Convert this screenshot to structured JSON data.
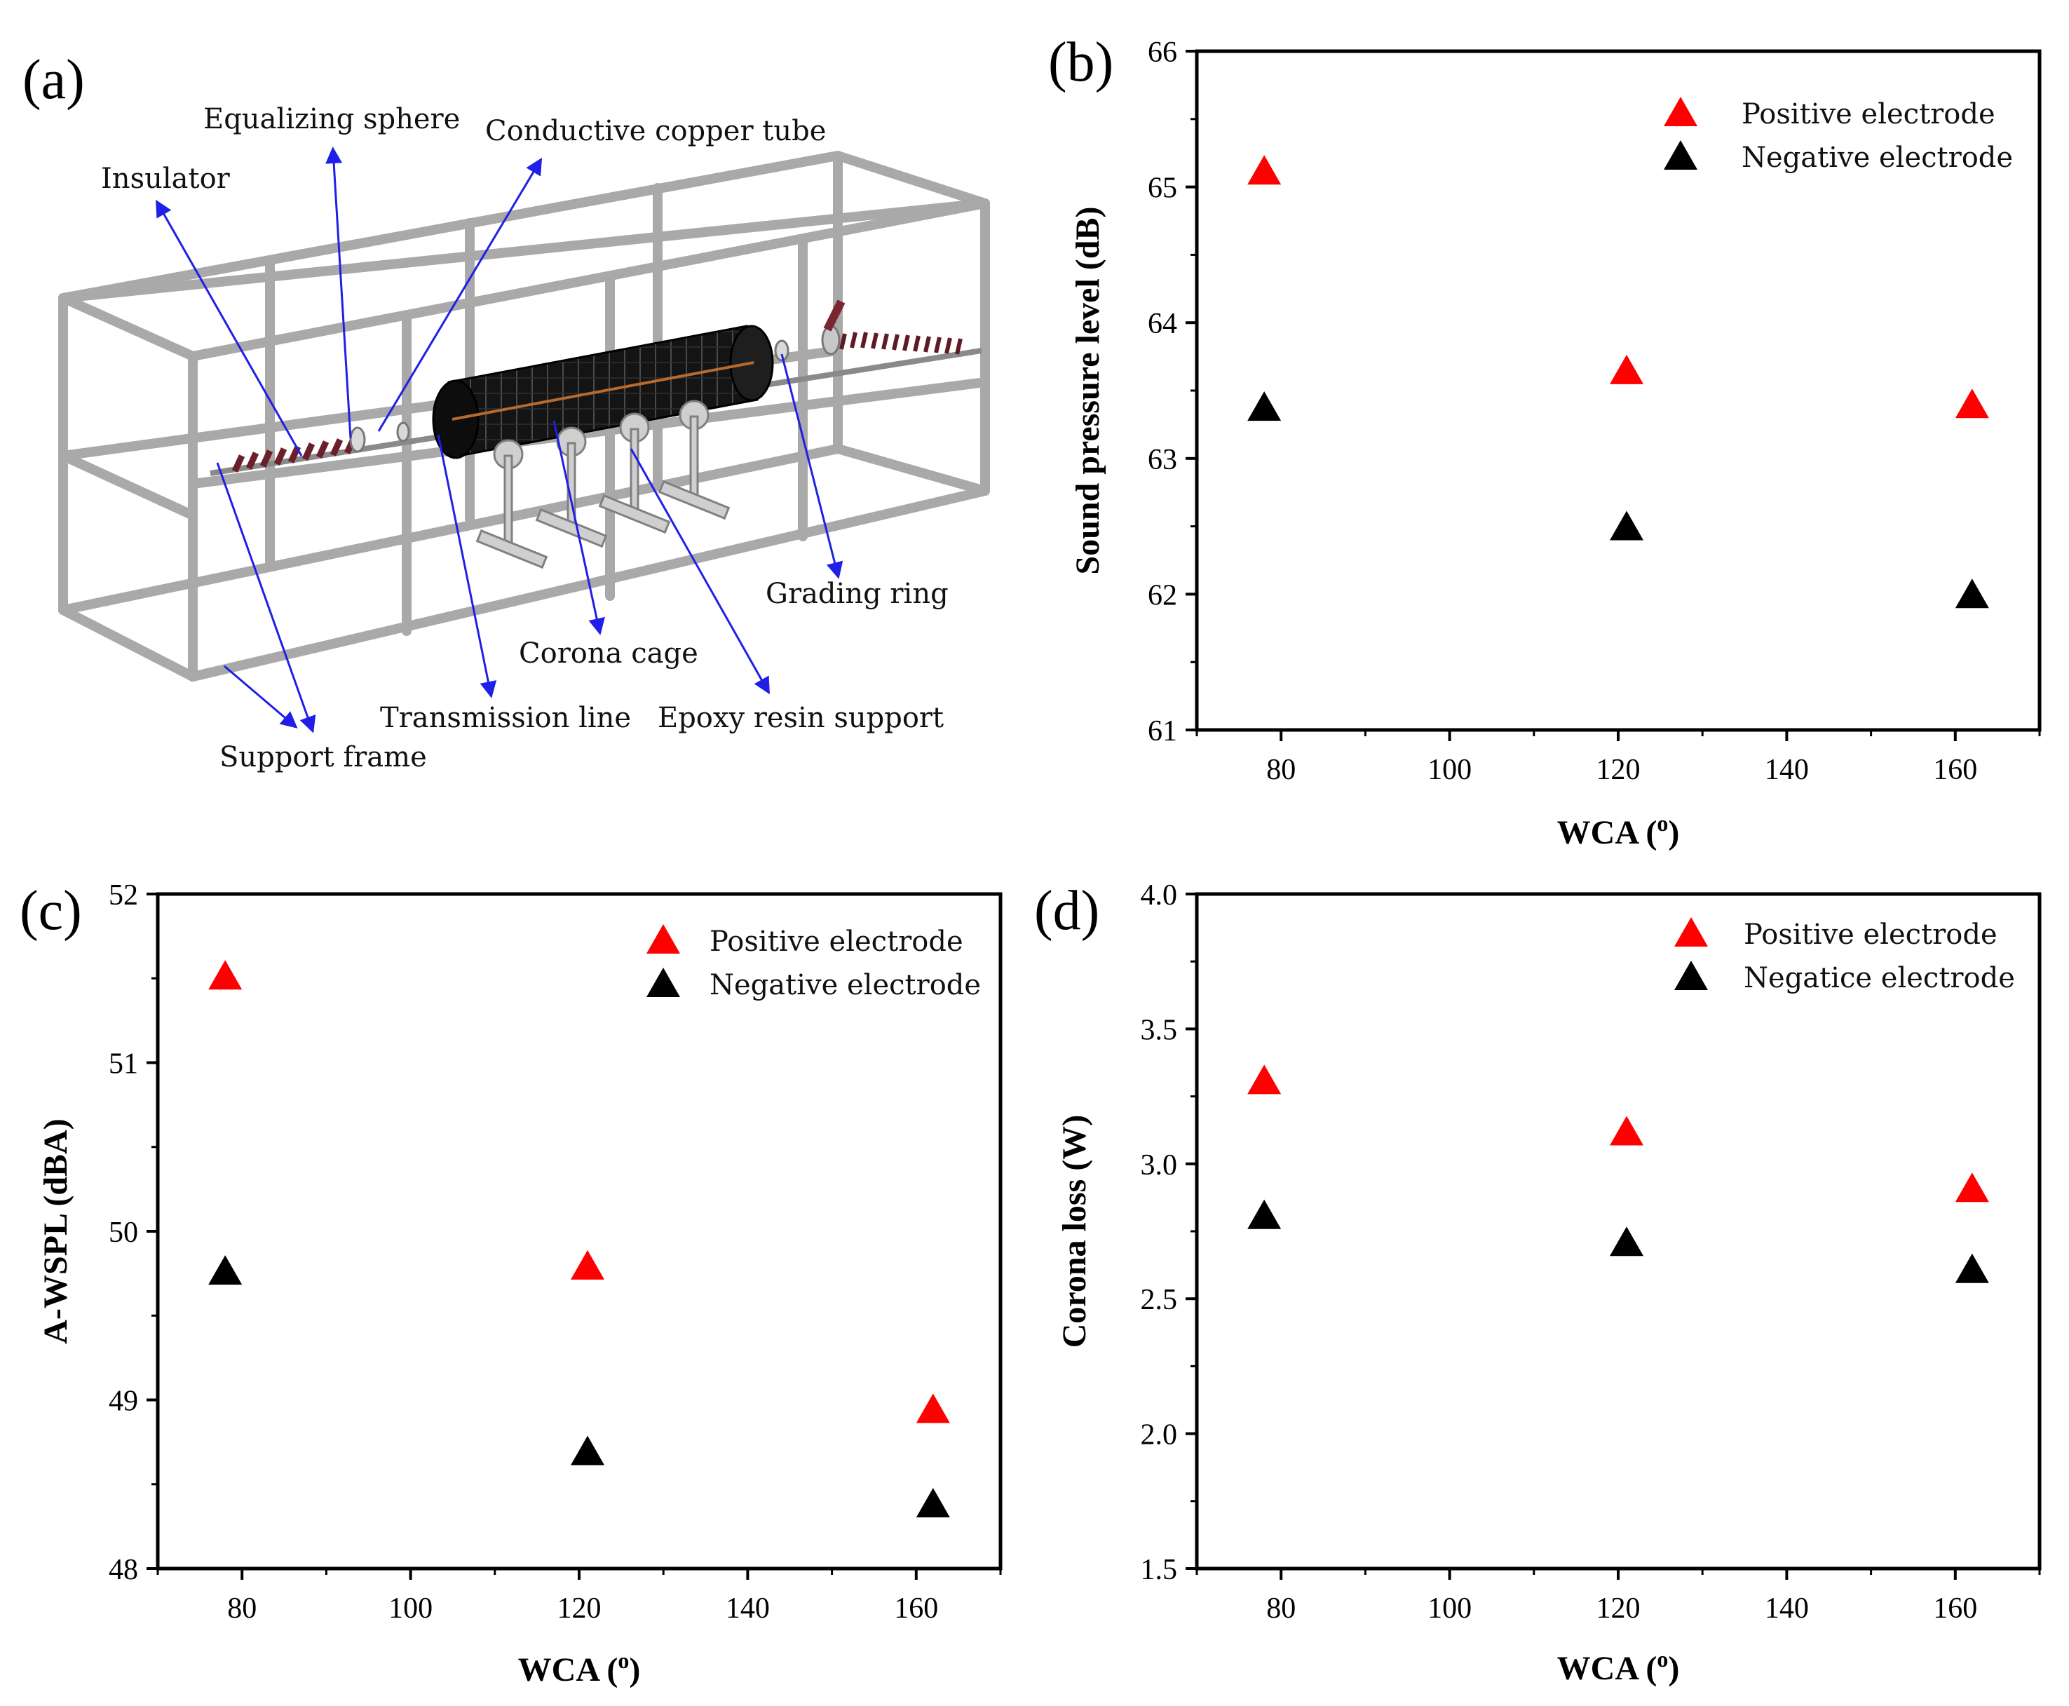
{
  "panel_a": {
    "letter": "(a)",
    "labels": {
      "equalizing_sphere": "Equalizing sphere",
      "conductive_copper_tube": "Conductive copper tube",
      "insulator": "Insulator",
      "grading_ring": "Grading ring",
      "corona_cage": "Corona cage",
      "transmission_line": "Transmission line",
      "epoxy_resin_support": "Epoxy resin support",
      "support_frame": "Support frame"
    },
    "colors": {
      "arrow": "#1f1fe8",
      "frame": "#b8b8b8",
      "cage": "#1a1a1a",
      "insulator": "#7a2630"
    }
  },
  "chart_data": [
    {
      "id": "b",
      "panel_letter": "(b)",
      "type": "scatter",
      "xlabel": "WCA (o)",
      "xlabel_main": "WCA (",
      "xlabel_sup": "o",
      "xlabel_close": ")",
      "ylabel": "Sound pressure level (dB)",
      "xlim": [
        70,
        170
      ],
      "ylim": [
        61,
        66
      ],
      "xticks": [
        "80",
        "100",
        "120",
        "140",
        "160"
      ],
      "yticks": [
        "61",
        "62",
        "63",
        "64",
        "65",
        "66"
      ],
      "series": [
        {
          "name": "Positive electrode",
          "color": "#ff0000",
          "x": [
            78,
            121,
            162
          ],
          "y": [
            65.1,
            63.63,
            63.38
          ]
        },
        {
          "name": "Negative electrode",
          "color": "#000000",
          "x": [
            78,
            121,
            162
          ],
          "y": [
            63.36,
            62.48,
            61.98
          ]
        }
      ],
      "legend": "top-right"
    },
    {
      "id": "c",
      "panel_letter": "(c)",
      "type": "scatter",
      "xlabel": "WCA (o)",
      "xlabel_main": "WCA (",
      "xlabel_sup": "o",
      "xlabel_close": ")",
      "ylabel": "A-WSPL (dBA)",
      "xlim": [
        70,
        170
      ],
      "ylim": [
        48,
        52
      ],
      "xticks": [
        "80",
        "100",
        "120",
        "140",
        "160"
      ],
      "yticks": [
        "48",
        "49",
        "50",
        "51",
        "52"
      ],
      "series": [
        {
          "name": "Positive electrode",
          "color": "#ff0000",
          "x": [
            78,
            121,
            162
          ],
          "y": [
            51.5,
            49.78,
            48.93
          ]
        },
        {
          "name": "Negative electrode",
          "color": "#000000",
          "x": [
            78,
            121,
            162
          ],
          "y": [
            49.75,
            48.68,
            48.37
          ]
        }
      ],
      "legend": "top-right"
    },
    {
      "id": "d",
      "panel_letter": "(d)",
      "type": "scatter",
      "xlabel": "WCA (o)",
      "xlabel_main": "WCA (",
      "xlabel_sup": "o",
      "xlabel_close": ")",
      "ylabel": "Corona loss (W)",
      "xlim": [
        70,
        170
      ],
      "ylim": [
        1.5,
        4.0
      ],
      "xticks": [
        "80",
        "100",
        "120",
        "140",
        "160"
      ],
      "yticks": [
        "1.5",
        "2.0",
        "2.5",
        "3.0",
        "3.5",
        "4.0"
      ],
      "series": [
        {
          "name": "Positive electrode",
          "color": "#ff0000",
          "x": [
            78,
            121,
            162
          ],
          "y": [
            3.3,
            3.11,
            2.9
          ]
        },
        {
          "name": "Negatice electrode",
          "color": "#000000",
          "x": [
            78,
            121,
            162
          ],
          "y": [
            2.8,
            2.7,
            2.6
          ]
        }
      ],
      "legend": "top-right"
    }
  ]
}
